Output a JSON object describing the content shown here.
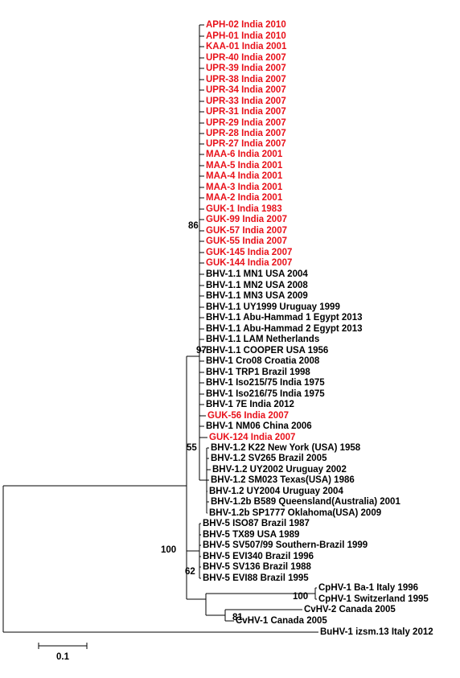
{
  "leaves": [
    {
      "label": "APH-02 India 2010",
      "color": "#e8111a"
    },
    {
      "label": "APH-01 India 2010",
      "color": "#e8111a"
    },
    {
      "label": "KAA-01 India 2001",
      "color": "#e8111a"
    },
    {
      "label": "UPR-40 India 2007",
      "color": "#e8111a"
    },
    {
      "label": "UPR-39 India 2007",
      "color": "#e8111a"
    },
    {
      "label": "UPR-38 India 2007",
      "color": "#e8111a"
    },
    {
      "label": "UPR-34 India 2007",
      "color": "#e8111a"
    },
    {
      "label": "UPR-33 India 2007",
      "color": "#e8111a"
    },
    {
      "label": "UPR-31 India 2007",
      "color": "#e8111a"
    },
    {
      "label": "UPR-29 India 2007",
      "color": "#e8111a"
    },
    {
      "label": "UPR-28 India 2007",
      "color": "#e8111a"
    },
    {
      "label": "UPR-27 India 2007",
      "color": "#e8111a"
    },
    {
      "label": "MAA-6 India 2001",
      "color": "#e8111a"
    },
    {
      "label": "MAA-5 India 2001",
      "color": "#e8111a"
    },
    {
      "label": "MAA-4 India 2001",
      "color": "#e8111a"
    },
    {
      "label": "MAA-3 India 2001",
      "color": "#e8111a"
    },
    {
      "label": "MAA-2 India 2001",
      "color": "#e8111a"
    },
    {
      "label": "GUK-1 India 1983",
      "color": "#e8111a"
    },
    {
      "label": "GUK-99 India 2007",
      "color": "#e8111a"
    },
    {
      "label": "GUK-57 India 2007",
      "color": "#e8111a"
    },
    {
      "label": "GUK-55 India 2007",
      "color": "#e8111a"
    },
    {
      "label": "GUK-145 India 2007",
      "color": "#e8111a"
    },
    {
      "label": "GUK-144 India 2007",
      "color": "#e8111a"
    },
    {
      "label": "BHV-1.1 MN1 USA 2004",
      "color": "#000000"
    },
    {
      "label": "BHV-1.1 MN2 USA 2008",
      "color": "#000000"
    },
    {
      "label": "BHV-1.1 MN3 USA 2009",
      "color": "#000000"
    },
    {
      "label": "BHV-1.1 UY1999 Uruguay 1999",
      "color": "#000000"
    },
    {
      "label": "BHV-1.1 Abu-Hammad 1 Egypt 2013",
      "color": "#000000"
    },
    {
      "label": "BHV-1.1 Abu-Hammad 2 Egypt 2013",
      "color": "#000000"
    },
    {
      "label": "BHV-1.1 LAM Netherlands",
      "color": "#000000"
    },
    {
      "label": "BHV-1.1 COOPER USA 1956",
      "color": "#000000"
    },
    {
      "label": "BHV-1 Cro08 Croatia 2008",
      "color": "#000000"
    },
    {
      "label": "BHV-1 TRP1 Brazil 1998",
      "color": "#000000"
    },
    {
      "label": "BHV-1 Iso215/75 India 1975",
      "color": "#000000"
    },
    {
      "label": "BHV-1 Iso216/75 India 1975",
      "color": "#000000"
    },
    {
      "label": "BHV-1 7E India 2012",
      "color": "#000000"
    },
    {
      "label": "GUK-56 India 2007",
      "color": "#e8111a"
    },
    {
      "label": "BHV-1 NM06 China 2006",
      "color": "#000000"
    },
    {
      "label": "GUK-124 India 2007",
      "color": "#e8111a"
    },
    {
      "label": "BHV-1.2 K22 New York (USA) 1958",
      "color": "#000000"
    },
    {
      "label": "BHV-1.2 SV265 Brazil 2005",
      "color": "#000000"
    },
    {
      "label": "BHV-1.2 UY2002 Uruguay 2002",
      "color": "#000000"
    },
    {
      "label": "BHV-1.2 SM023 Texas(USA) 1986",
      "color": "#000000"
    },
    {
      "label": "BHV-1.2 UY2004 Uruguay 2004",
      "color": "#000000"
    },
    {
      "label": "BHV-1.2b B589 Queensland(Australia) 2001",
      "color": "#000000"
    },
    {
      "label": "BHV-1.2b SP1777 Oklahoma(USA) 2009",
      "color": "#000000"
    },
    {
      "label": "BHV-5 ISO87 Brazil 1987",
      "color": "#000000"
    },
    {
      "label": "BHV-5 TX89 USA 1989",
      "color": "#000000"
    },
    {
      "label": "BHV-5 SV507/99 Southern-Brazil 1999",
      "color": "#000000"
    },
    {
      "label": "BHV-5 EVI340 Brazil 1996",
      "color": "#000000"
    },
    {
      "label": "BHV-5 SV136 Brazil 1988",
      "color": "#000000"
    },
    {
      "label": "BHV-5 EVI88 Brazil 1995",
      "color": "#000000"
    },
    {
      "label": "CpHV-1 Ba-1 Italy 1996",
      "color": "#000000"
    },
    {
      "label": "CpHV-1 Switzerland 1995",
      "color": "#000000"
    },
    {
      "label": "CvHV-2 Canada 2005",
      "color": "#000000"
    },
    {
      "label": "CvHV-1 Canada 2005",
      "color": "#000000"
    },
    {
      "label": "BuHV-1 izsm.13 Italy 2012",
      "color": "#000000"
    }
  ],
  "bootstrap": [
    86,
    97,
    55,
    100,
    62,
    100,
    81
  ],
  "scale_bar": {
    "label": 0.1
  }
}
